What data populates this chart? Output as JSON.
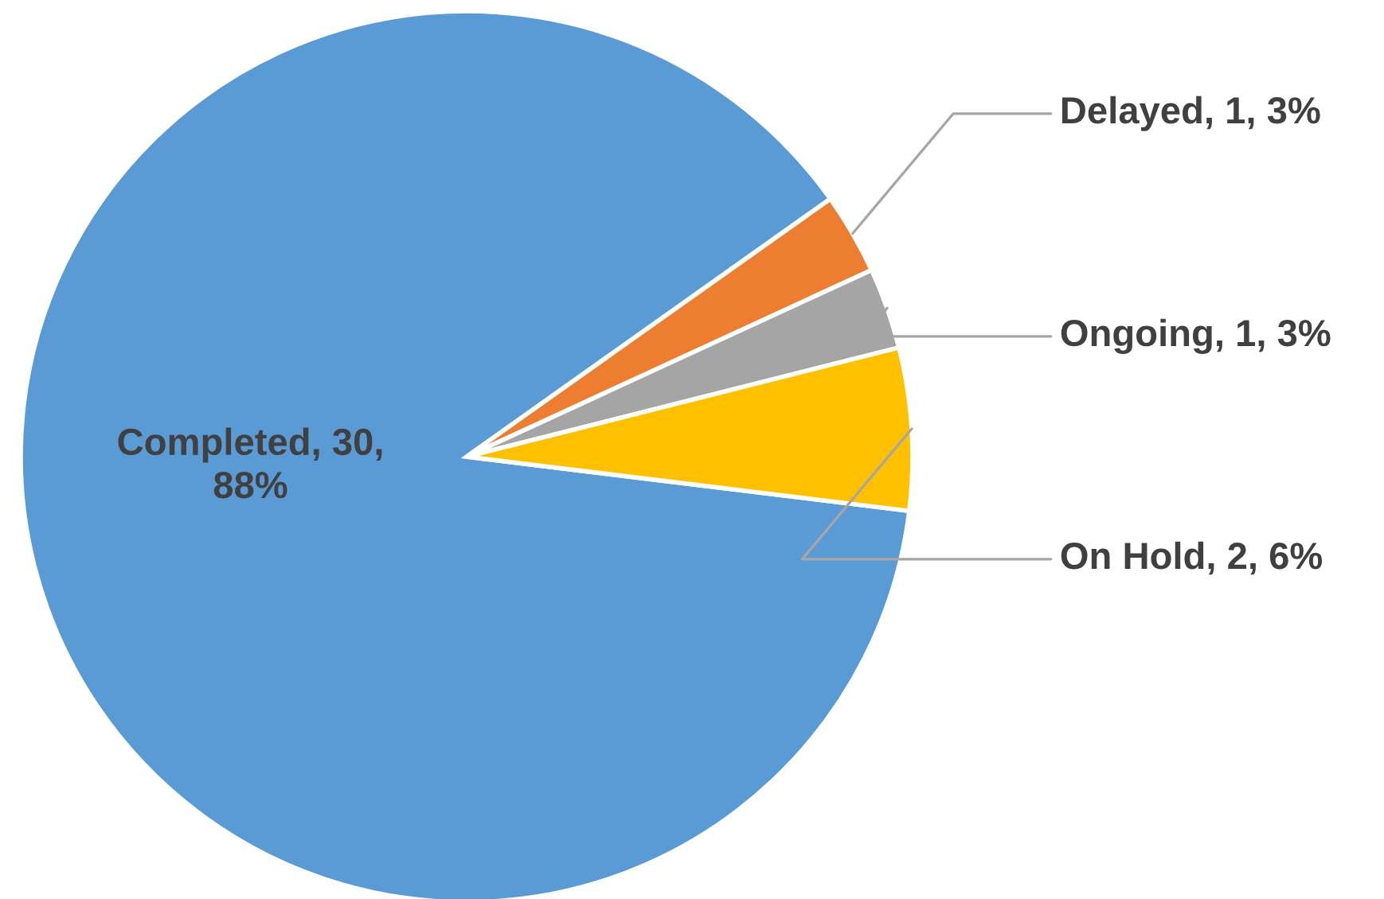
{
  "chart_data": {
    "type": "pie",
    "categories": [
      "Completed",
      "Delayed",
      "Ongoing",
      "On Hold"
    ],
    "values": [
      30,
      1,
      1,
      2
    ],
    "colors": [
      "#5b9bd5",
      "#ed7d31",
      "#a5a5a5",
      "#ffc000"
    ],
    "value_labels": [
      "30, 88%",
      "1, 3%",
      "1, 3%",
      "2, 6%"
    ]
  }
}
